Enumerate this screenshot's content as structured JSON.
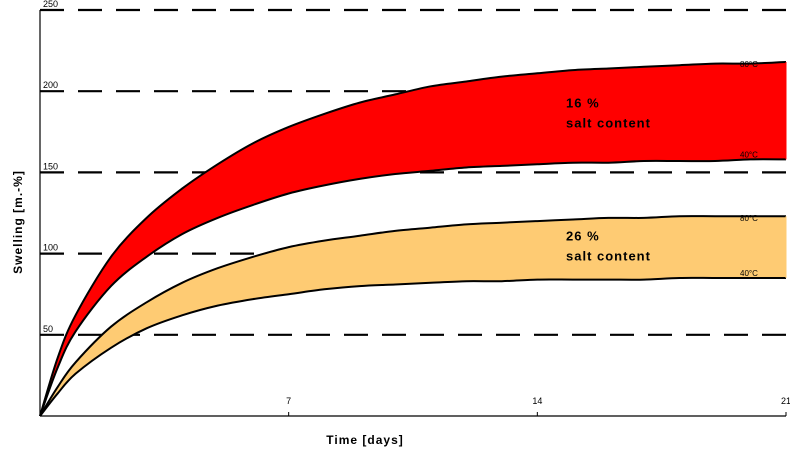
{
  "chart_data": {
    "type": "area",
    "xlabel": "Time [days]",
    "ylabel": "Swelling [m.-%]",
    "xlim": [
      0,
      21
    ],
    "ylim": [
      0,
      250
    ],
    "x_ticks": [
      7,
      14,
      21
    ],
    "y_ticks": [
      50,
      100,
      150,
      200,
      250
    ],
    "grid": "dashed horizontal lines at y ticks",
    "bands": [
      {
        "label_line1": "16 %",
        "label_line2": "salt content",
        "color": "#ff0000",
        "upper_label": "80°C",
        "lower_label": "40°C",
        "upper": {
          "x": [
            0,
            0.5,
            1,
            2,
            3,
            4,
            5,
            6,
            7,
            8,
            9,
            10,
            11,
            12,
            13,
            14,
            15,
            16,
            17,
            18,
            19,
            20,
            21
          ],
          "y": [
            0,
            36,
            62,
            98,
            122,
            140,
            155,
            168,
            178,
            186,
            193,
            198,
            203,
            206,
            209,
            211,
            213,
            214,
            215,
            216,
            217,
            217,
            218
          ]
        },
        "lower": {
          "x": [
            0,
            0.5,
            1,
            2,
            3,
            4,
            5,
            6,
            7,
            8,
            9,
            10,
            11,
            12,
            13,
            14,
            15,
            16,
            17,
            18,
            19,
            20,
            21
          ],
          "y": [
            0,
            30,
            52,
            80,
            98,
            112,
            122,
            130,
            137,
            142,
            146,
            149,
            151,
            153,
            154,
            155,
            156,
            156,
            157,
            157,
            157,
            158,
            158
          ]
        }
      },
      {
        "label_line1": "26 %",
        "label_line2": "salt content",
        "color": "#fecb73",
        "upper_label": "80°C",
        "lower_label": "40°C",
        "upper": {
          "x": [
            0,
            0.5,
            1,
            2,
            3,
            4,
            5,
            6,
            7,
            8,
            9,
            10,
            11,
            12,
            13,
            14,
            15,
            16,
            17,
            18,
            19,
            20,
            21
          ],
          "y": [
            0,
            18,
            33,
            55,
            70,
            82,
            91,
            98,
            104,
            108,
            111,
            114,
            116,
            118,
            119,
            120,
            121,
            122,
            122,
            123,
            123,
            123,
            123
          ]
        },
        "lower": {
          "x": [
            0,
            0.5,
            1,
            2,
            3,
            4,
            5,
            6,
            7,
            8,
            9,
            10,
            11,
            12,
            13,
            14,
            15,
            16,
            17,
            18,
            19,
            20,
            21
          ],
          "y": [
            0,
            14,
            26,
            42,
            54,
            62,
            68,
            72,
            75,
            78,
            80,
            81,
            82,
            83,
            83,
            84,
            84,
            84,
            84,
            85,
            85,
            85,
            85
          ]
        }
      }
    ]
  }
}
